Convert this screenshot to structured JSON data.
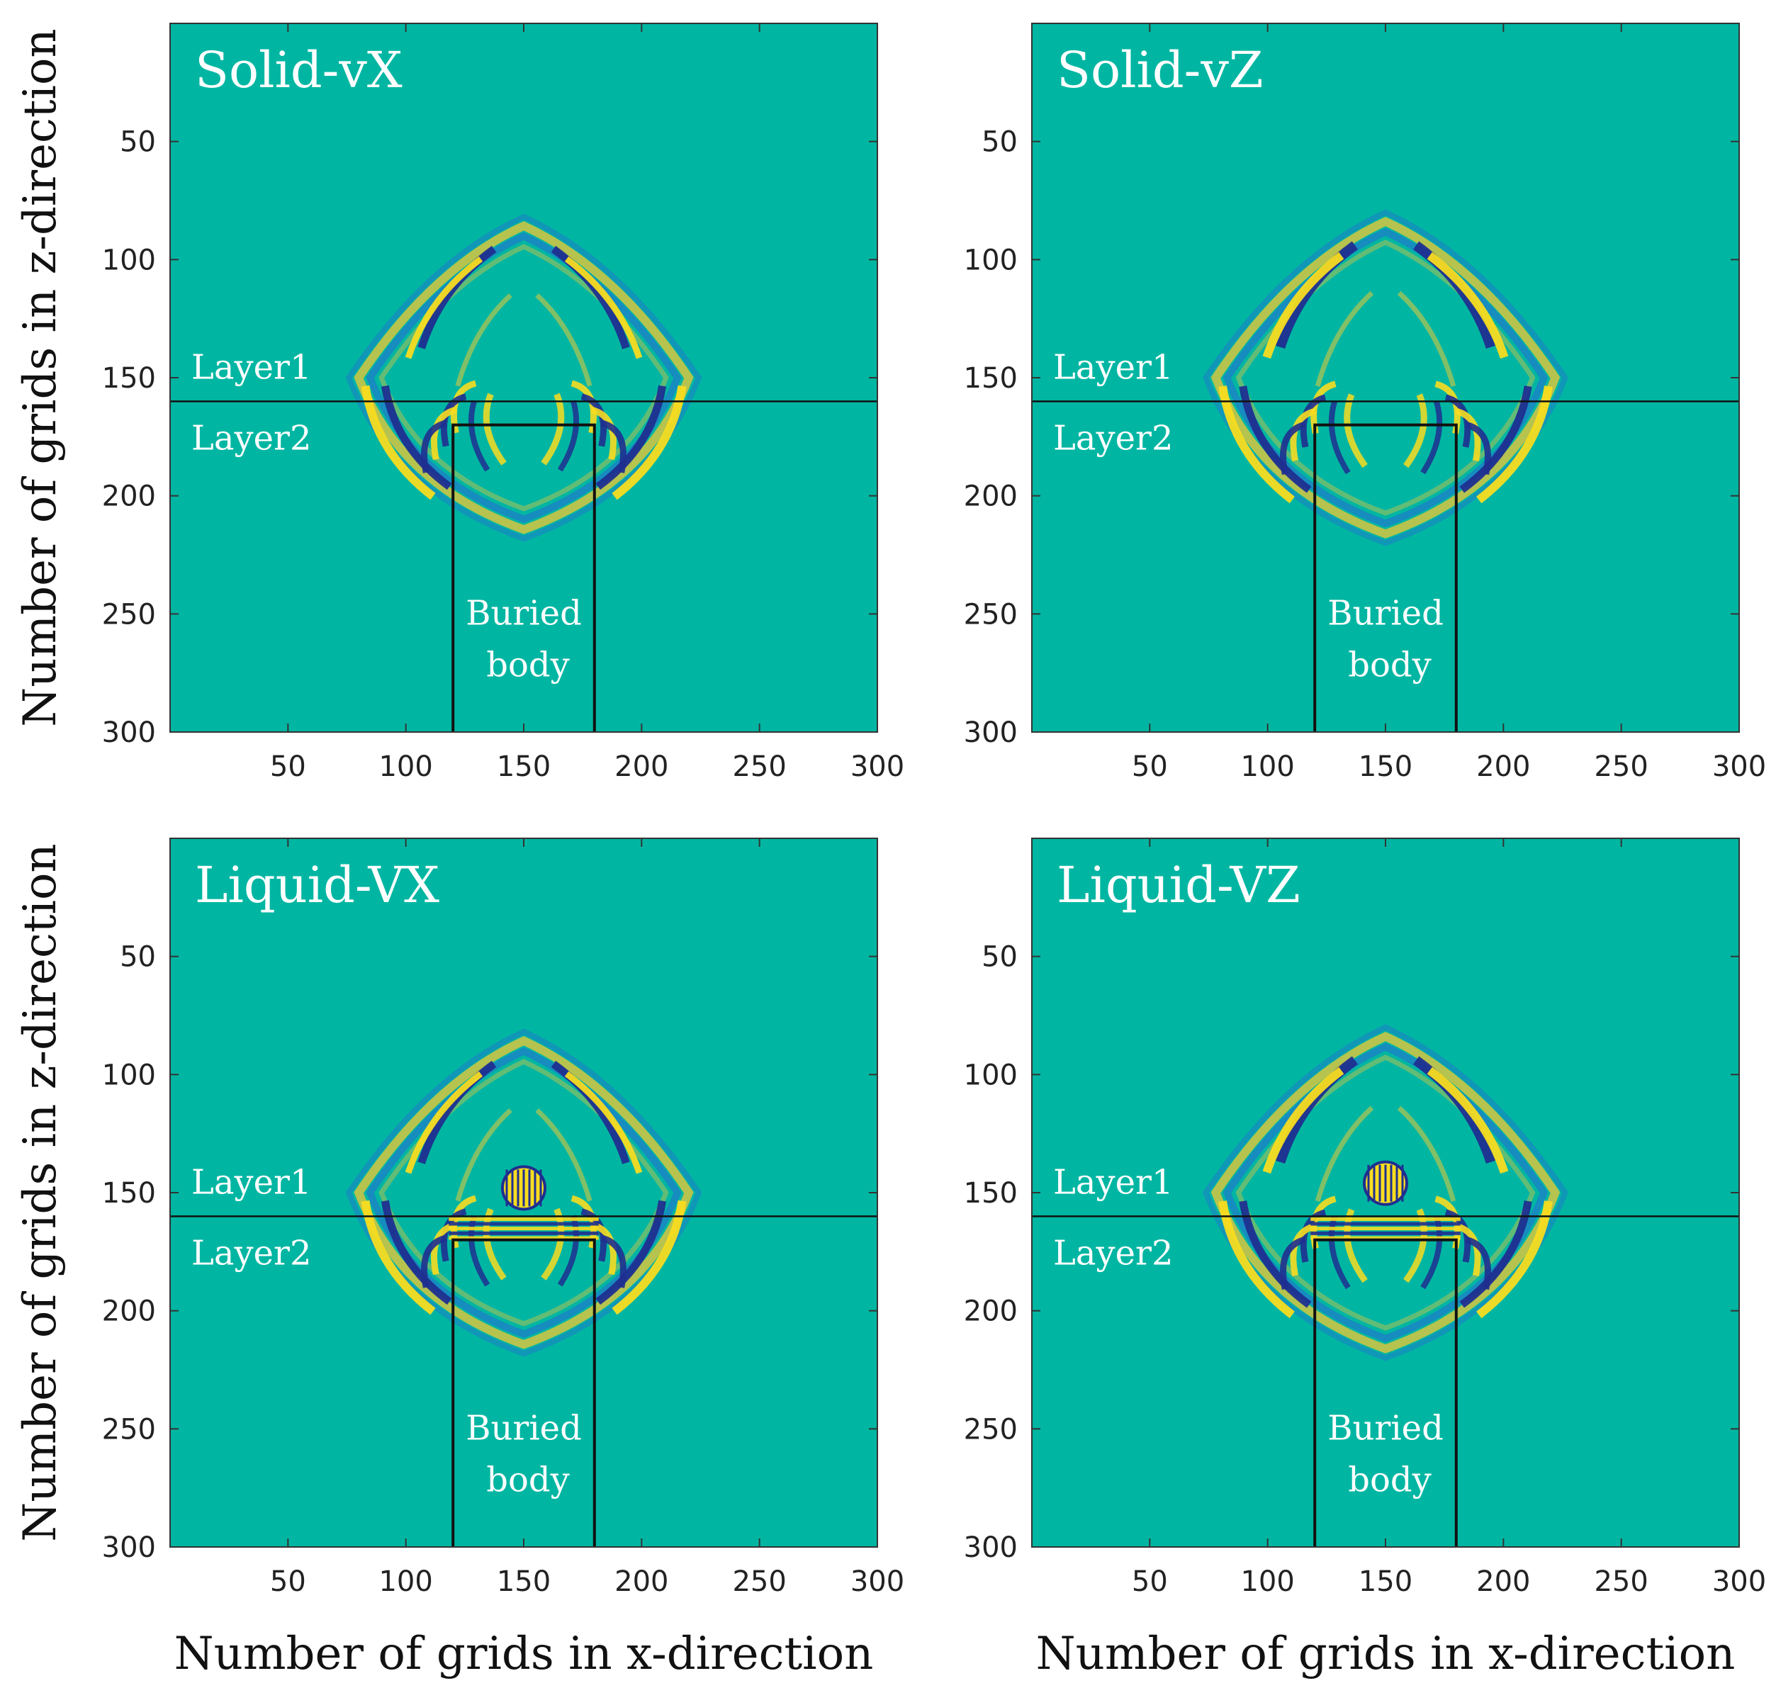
{
  "figure": {
    "xlabel": "Number of grids in x-direction",
    "ylabel": "Number of grids in z-direction"
  },
  "colors": {
    "background": "#00b6a2",
    "positive": "#f8dc20",
    "positive_mid": "#d6c640",
    "negative": "#1f2f90",
    "negative_mid": "#1e7ec8",
    "line": "#111111",
    "frame": "#333333"
  },
  "chart_data": [
    {
      "type": "heatmap",
      "title": "Solid-vX",
      "xlim": [
        0,
        300
      ],
      "ylim": [
        300,
        0
      ],
      "xticks": [
        50,
        100,
        150,
        200,
        250,
        300
      ],
      "yticks": [
        50,
        100,
        150,
        200,
        250,
        300
      ],
      "layer_interface_z": 160,
      "buried_body": {
        "x": [
          120,
          180
        ],
        "z_top": 170,
        "label_line1": "Buried",
        "label_line2": "body"
      },
      "layer_labels": [
        "Layer1",
        "Layer2"
      ],
      "wavefront_center": [
        150,
        150
      ],
      "wavefront_radius": 70,
      "component": "x",
      "source_marker": false,
      "interface_ripple": false
    },
    {
      "type": "heatmap",
      "title": "Solid-vZ",
      "xlim": [
        0,
        300
      ],
      "ylim": [
        300,
        0
      ],
      "xticks": [
        50,
        100,
        150,
        200,
        250,
        300
      ],
      "yticks": [
        50,
        100,
        150,
        200,
        250,
        300
      ],
      "layer_interface_z": 160,
      "buried_body": {
        "x": [
          120,
          180
        ],
        "z_top": 170,
        "label_line1": "Buried",
        "label_line2": "body"
      },
      "layer_labels": [
        "Layer1",
        "Layer2"
      ],
      "wavefront_center": [
        150,
        150
      ],
      "wavefront_radius": 72,
      "component": "z",
      "source_marker": false,
      "interface_ripple": false
    },
    {
      "type": "heatmap",
      "title": "Liquid-VX",
      "xlim": [
        0,
        300
      ],
      "ylim": [
        300,
        0
      ],
      "xticks": [
        50,
        100,
        150,
        200,
        250,
        300
      ],
      "yticks": [
        50,
        100,
        150,
        200,
        250,
        300
      ],
      "layer_interface_z": 160,
      "buried_body": {
        "x": [
          120,
          180
        ],
        "z_top": 170,
        "label_line1": "Buried",
        "label_line2": "body"
      },
      "layer_labels": [
        "Layer1",
        "Layer2"
      ],
      "wavefront_center": [
        150,
        150
      ],
      "wavefront_radius": 70,
      "component": "x",
      "source_marker": true,
      "source_position": [
        150,
        148
      ],
      "interface_ripple": true
    },
    {
      "type": "heatmap",
      "title": "Liquid-VZ",
      "xlim": [
        0,
        300
      ],
      "ylim": [
        300,
        0
      ],
      "xticks": [
        50,
        100,
        150,
        200,
        250,
        300
      ],
      "yticks": [
        50,
        100,
        150,
        200,
        250,
        300
      ],
      "layer_interface_z": 160,
      "buried_body": {
        "x": [
          120,
          180
        ],
        "z_top": 170,
        "label_line1": "Buried",
        "label_line2": "body"
      },
      "layer_labels": [
        "Layer1",
        "Layer2"
      ],
      "wavefront_center": [
        150,
        150
      ],
      "wavefront_radius": 72,
      "component": "z",
      "source_marker": true,
      "source_position": [
        150,
        146
      ],
      "interface_ripple": true
    }
  ]
}
